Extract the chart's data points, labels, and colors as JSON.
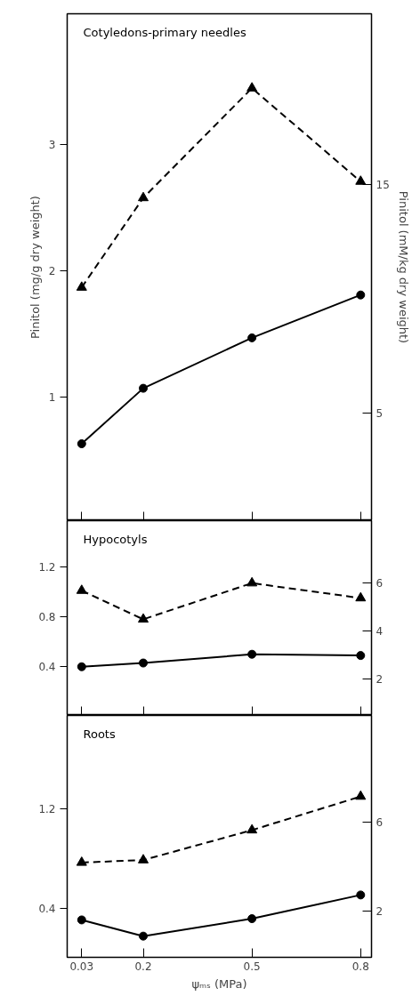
{
  "chart_data": [
    {
      "type": "line",
      "title": "Cotyledons-primary needles",
      "ylabel": "Pinitol (mg/g dry weight)",
      "y2label": "Pinitol (mM/kg dry weight)",
      "x": [
        0.03,
        0.2,
        0.5,
        0.8
      ],
      "xlim": [
        -0.01,
        0.83
      ],
      "xticks": [
        {
          "value": 0.03,
          "label": null
        },
        {
          "value": 0.2,
          "label": null
        },
        {
          "value": 0.5,
          "label": null
        },
        {
          "value": 0.8,
          "label": null
        }
      ],
      "ylim": [
        0.02,
        4.04
      ],
      "yticks": [
        1,
        2,
        3
      ],
      "y2lim": [
        0.27,
        22.5
      ],
      "y2ticks": [
        5,
        15
      ],
      "tick_labels": "y",
      "grid": false,
      "series": [
        {
          "color": "#000000",
          "marker": "triangle",
          "line_style": "dashed",
          "values": [
            1.87,
            2.58,
            3.45,
            2.71
          ]
        },
        {
          "color": "#000000",
          "marker": "circle",
          "line_style": "solid",
          "values": [
            0.63,
            1.07,
            1.47,
            1.81
          ]
        }
      ]
    },
    {
      "type": "line",
      "title": "Hypocotyls",
      "x": [
        0.03,
        0.2,
        0.5,
        0.8
      ],
      "xlim": [
        -0.01,
        0.83
      ],
      "xticks": [
        {
          "value": 0.03,
          "label": null
        },
        {
          "value": 0.2,
          "label": null
        },
        {
          "value": 0.5,
          "label": null
        },
        {
          "value": 0.8,
          "label": null
        }
      ],
      "ylim": [
        0.01,
        1.57
      ],
      "yticks": [
        0.4,
        0.8,
        1.2
      ],
      "y2lim": [
        0.48,
        8.62
      ],
      "y2ticks": [
        2,
        4,
        6
      ],
      "tick_labels": "y",
      "grid": false,
      "series": [
        {
          "color": "#000000",
          "marker": "triangle",
          "line_style": "dashed",
          "values": [
            1.01,
            0.78,
            1.07,
            0.95
          ]
        },
        {
          "color": "#000000",
          "marker": "circle",
          "line_style": "solid",
          "values": [
            0.4,
            0.43,
            0.5,
            0.49
          ]
        }
      ]
    },
    {
      "type": "line",
      "title": "Roots",
      "xlabel": "ψₘₛ (MPa)",
      "x": [
        0.03,
        0.2,
        0.5,
        0.8
      ],
      "xlim": [
        -0.01,
        0.83
      ],
      "xticks": [
        {
          "value": 0.03,
          "label": "0.03"
        },
        {
          "value": 0.2,
          "label": "0.2"
        },
        {
          "value": 0.5,
          "label": "0.5"
        },
        {
          "value": 0.8,
          "label": "0.8"
        }
      ],
      "ylim": [
        0.01,
        1.95
      ],
      "yticks": [
        0.4,
        1.2
      ],
      "y2lim": [
        -0.07,
        10.8
      ],
      "y2ticks": [
        2,
        6
      ],
      "grid": false,
      "series": [
        {
          "color": "#000000",
          "marker": "triangle",
          "line_style": "dashed",
          "values": [
            0.77,
            0.79,
            1.03,
            1.3
          ]
        },
        {
          "color": "#000000",
          "marker": "circle",
          "line_style": "solid",
          "values": [
            0.31,
            0.18,
            0.32,
            0.51
          ]
        }
      ]
    }
  ]
}
